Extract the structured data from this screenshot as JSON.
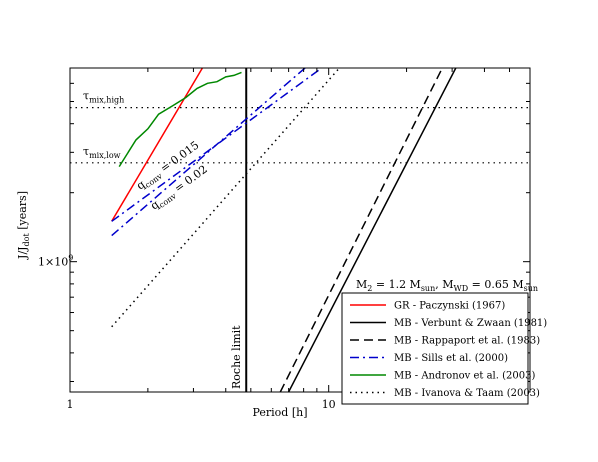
{
  "chart_data": {
    "type": "line",
    "xlabel": "Period [h]",
    "ylabel_main": "J/J",
    "ylabel_sub": "dot",
    "ylabel_unit": " [years]",
    "xscale": "log",
    "yscale": "log",
    "xlim": [
      1,
      60
    ],
    "ylim": [
      270000000.0,
      7000000000.0
    ],
    "x_ticks": [
      {
        "value": 1,
        "label": "1"
      },
      {
        "value": 10,
        "label": "10"
      }
    ],
    "y_ticks": [
      {
        "value": 1000000000.0,
        "label": "1×10",
        "exp": "9"
      }
    ],
    "hlines": [
      {
        "y": 4700000000.0,
        "label_main": "τ",
        "label_sub": "mix,high"
      },
      {
        "y": 2700000000.0,
        "label_main": "τ",
        "label_sub": "mix,low"
      }
    ],
    "vline": {
      "x": 4.8,
      "label": "Roche limit"
    },
    "annotations": [
      {
        "main": "q",
        "sub": "conv",
        "tail": " = 0.015"
      },
      {
        "main": "q",
        "sub": "conv",
        "tail": " = 0.02"
      }
    ],
    "params": {
      "m2_main": "M",
      "m2_sub": "2",
      "m2_mid": " = 1.2 M",
      "m2_unit": "sun",
      "sep": ", ",
      "mwd_main": "M",
      "mwd_sub": "WD",
      "mwd_mid": " = 0.65 M",
      "mwd_unit": "sun"
    },
    "series": [
      {
        "name": "GR - Paczynski (1967)",
        "color": "#ff0000",
        "dash": "solid",
        "x": [
          1.45,
          3.25
        ],
        "y": [
          1500000000.0,
          7000000000.0
        ]
      },
      {
        "name": "MB - Verbunt & Zwaan (1981)",
        "color": "#000000",
        "dash": "solid",
        "x": [
          7.0,
          31.0
        ],
        "y": [
          270000000.0,
          7000000000.0
        ]
      },
      {
        "name": "MB - Rappaport et al. (1983)",
        "color": "#000000",
        "dash": "dashed",
        "x": [
          6.5,
          27.5
        ],
        "y": [
          270000000.0,
          7000000000.0
        ]
      },
      {
        "name": "MB - Sills et al. (2000)",
        "color": "#0000cc",
        "dash": "dashdot",
        "x": [
          1.45,
          9.4
        ],
        "y": [
          1500000000.0,
          7000000000.0
        ]
      },
      {
        "name": "",
        "color": "#0000cc",
        "dash": "dashdot",
        "x": [
          1.45,
          8.1
        ],
        "y": [
          1300000000.0,
          7000000000.0
        ]
      },
      {
        "name": "MB - Andronov et al. (2003)",
        "color": "#008800",
        "dash": "solid",
        "x": [
          1.55,
          1.8,
          2.0,
          2.2,
          2.5,
          2.8,
          3.1,
          3.4,
          3.7,
          4.0,
          4.3,
          4.6
        ],
        "y": [
          2600000000.0,
          3400000000.0,
          3800000000.0,
          4400000000.0,
          4800000000.0,
          5200000000.0,
          5700000000.0,
          6000000000.0,
          6100000000.0,
          6400000000.0,
          6500000000.0,
          6700000000.0
        ]
      },
      {
        "name": "MB - Ivanova & Taam (2003)",
        "color": "#000000",
        "dash": "dotted",
        "x": [
          1.45,
          11.0
        ],
        "y": [
          520000000.0,
          7000000000.0
        ]
      }
    ]
  }
}
